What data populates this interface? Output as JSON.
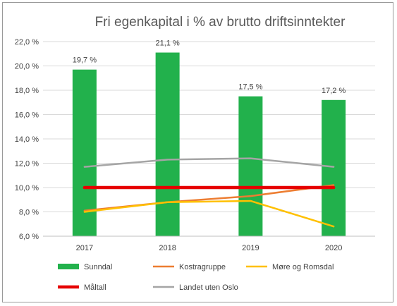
{
  "chart_data": {
    "type": "bar",
    "title": "Fri egenkapital i % av brutto driftsinntekter",
    "categories": [
      "2017",
      "2018",
      "2019",
      "2020"
    ],
    "ylim": [
      6.0,
      22.0
    ],
    "ytick_step": 2.0,
    "yticks": [
      "6,0 %",
      "8,0 %",
      "10,0 %",
      "12,0 %",
      "14,0 %",
      "16,0 %",
      "18,0 %",
      "20,0 %",
      "22,0 %"
    ],
    "grid": true,
    "legend_position": "bottom",
    "bar_series": {
      "name": "Sunndal",
      "color": "#22b14c",
      "values": [
        19.7,
        21.1,
        17.5,
        17.2
      ],
      "labels": [
        "19,7 %",
        "21,1 %",
        "17,5 %",
        "17,2 %"
      ]
    },
    "line_series": [
      {
        "name": "Kostragruppe",
        "color": "#ed7d31",
        "values": [
          8.1,
          8.8,
          9.3,
          10.2
        ]
      },
      {
        "name": "Møre og Romsdal",
        "color": "#ffc000",
        "values": [
          8.0,
          8.8,
          8.9,
          6.8
        ]
      },
      {
        "name": "Måltall",
        "color": "#e60000",
        "values": [
          10.0,
          10.0,
          10.0,
          10.0
        ]
      },
      {
        "name": "Landet uten Oslo",
        "color": "#a5a5a5",
        "values": [
          11.7,
          12.3,
          12.4,
          11.7
        ]
      }
    ]
  }
}
